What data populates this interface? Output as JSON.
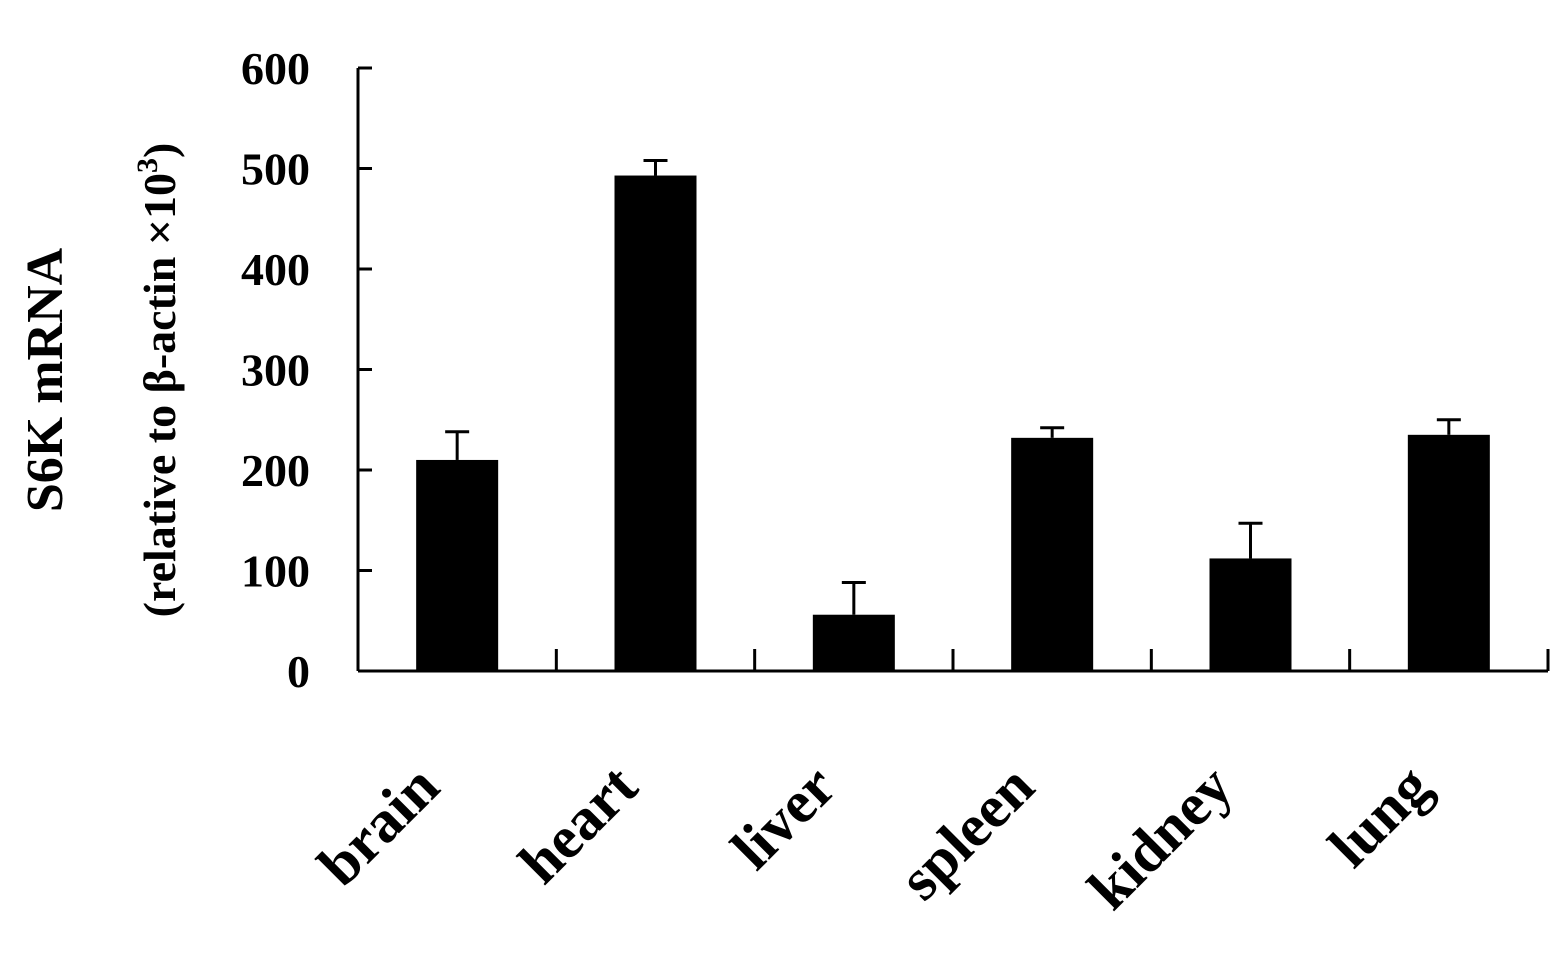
{
  "chart_data": {
    "type": "bar",
    "categories": [
      "brain",
      "heart",
      "liver",
      "spleen",
      "kidney",
      "lung"
    ],
    "values": [
      210,
      493,
      56,
      232,
      112,
      235
    ],
    "errors": [
      28,
      15,
      32,
      10,
      35,
      15
    ],
    "ylim": [
      0,
      600
    ],
    "yticks": [
      "0",
      "100",
      "200",
      "300",
      "400",
      "500",
      "600"
    ],
    "ylabel_line1": "S6K mRNA",
    "ylabel_line2": "(relative to β-actin ×10",
    "ylabel_exponent": "3",
    "ylabel_close": ")",
    "bar_color": "#000000",
    "grid": false
  }
}
